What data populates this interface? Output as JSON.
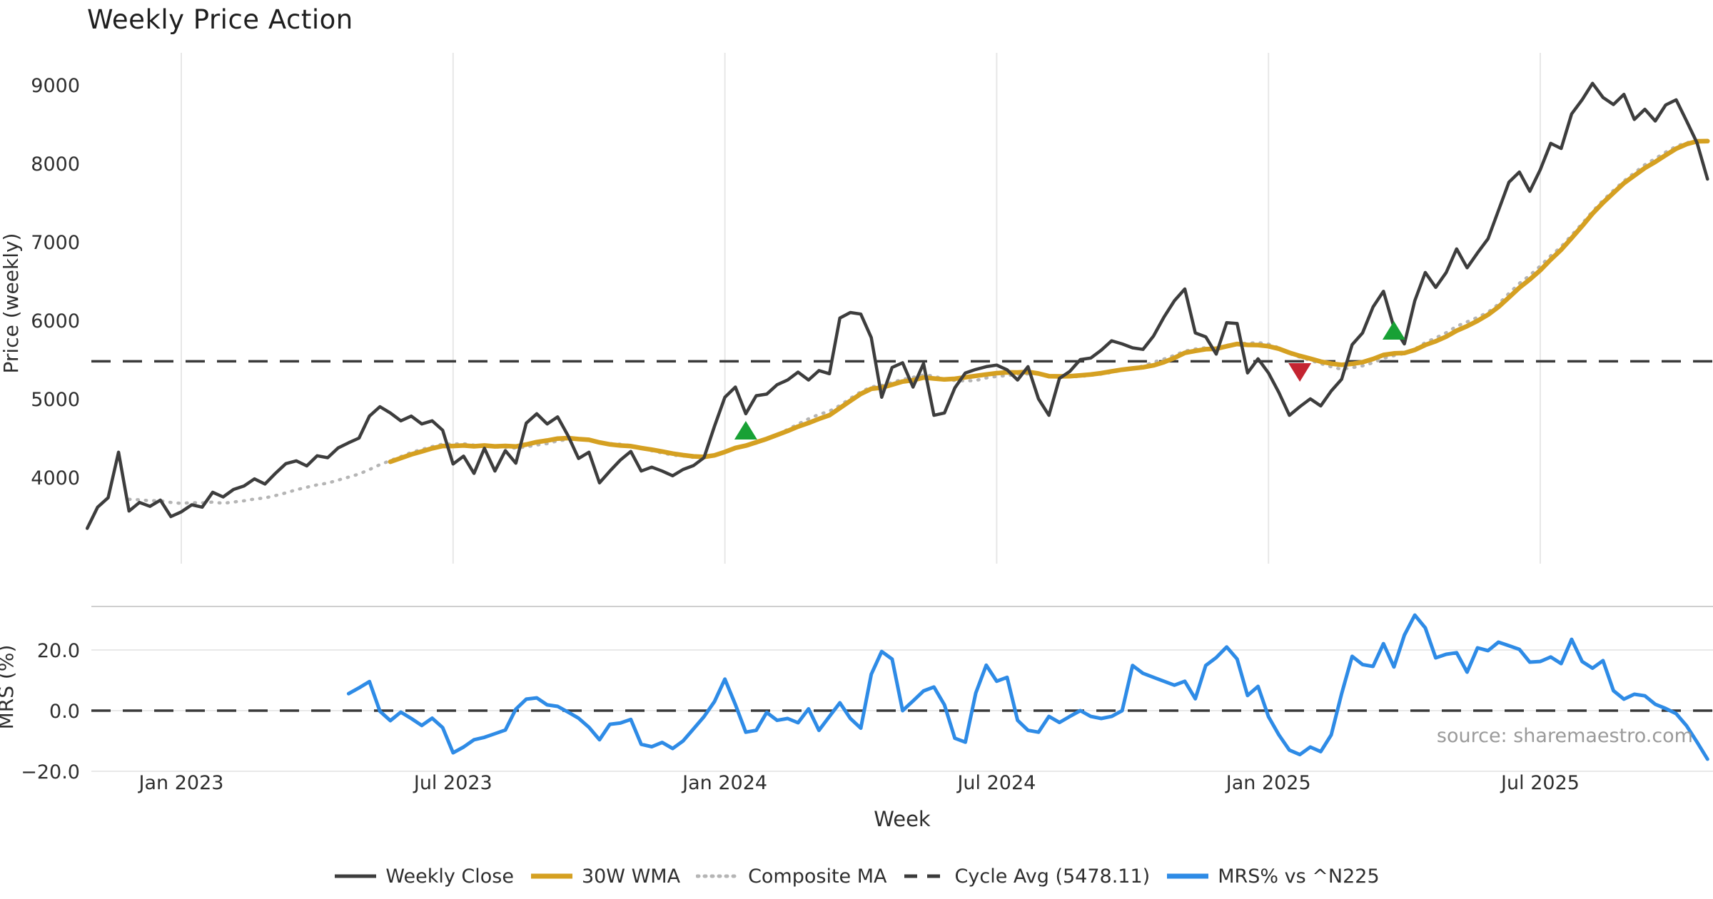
{
  "title": "Weekly Price Action",
  "source_credit": "source: sharemaestro.com",
  "colors": {
    "background": "#ffffff",
    "weekly_close": "#3d3d3d",
    "wma_30w": "#d5a021",
    "composite_ma": "#b5b5b5",
    "cycle_avg": "#3a3a3a",
    "mrs_line": "#2e8be6",
    "buy_marker": "#18a135",
    "sell_marker": "#c42431",
    "gridline_vertical": "#e7e7e7",
    "gridline_horizontal": "#e9e9e9",
    "panel_border": "#cfcfcf",
    "tick_text": "#2e2e2e",
    "title_text": "#1e1e1e",
    "source_text": "#9a9a9a"
  },
  "legend": [
    {
      "label": "Weekly Close",
      "color": "#3d3d3d",
      "style": "solid"
    },
    {
      "label": "30W WMA",
      "color": "#d5a021",
      "style": "solid-thick"
    },
    {
      "label": "Composite MA",
      "color": "#b5b5b5",
      "style": "dotted"
    },
    {
      "label": "Cycle Avg (5478.11)",
      "color": "#3a3a3a",
      "style": "dashed"
    },
    {
      "label": "MRS% vs ^N225",
      "color": "#2e8be6",
      "style": "solid-thick"
    }
  ],
  "chart_data": {
    "type": "line",
    "title": "Weekly Price Action",
    "xlabel": "Week",
    "weeks": 156,
    "x_ticks": [
      {
        "week": 9,
        "label": "Jan 2023"
      },
      {
        "week": 35,
        "label": "Jul 2023"
      },
      {
        "week": 61,
        "label": "Jan 2024"
      },
      {
        "week": 87,
        "label": "Jul 2024"
      },
      {
        "week": 113,
        "label": "Jan 2025"
      },
      {
        "week": 139,
        "label": "Jul 2025"
      }
    ],
    "panels": [
      {
        "ylabel": "Price (weekly)",
        "yticks": [
          {
            "label": "9000",
            "value": 9000
          },
          {
            "label": "8000",
            "value": 8000
          },
          {
            "label": "7000",
            "value": 7000
          },
          {
            "label": "6000",
            "value": 6000
          },
          {
            "label": "5000",
            "value": 5000
          },
          {
            "label": "4000",
            "value": 4000
          }
        ],
        "cycle_avg": 5478.11,
        "series": [
          {
            "name": "Weekly Close",
            "style": "solid",
            "values": [
              3350,
              3620,
              3740,
              4320,
              3570,
              3680,
              3630,
              3710,
              3500,
              3560,
              3650,
              3620,
              3810,
              3750,
              3845,
              3890,
              3980,
              3915,
              4050,
              4175,
              4210,
              4145,
              4275,
              4250,
              4375,
              4440,
              4500,
              4780,
              4900,
              4820,
              4720,
              4780,
              4680,
              4720,
              4600,
              4170,
              4270,
              4050,
              4370,
              4080,
              4340,
              4180,
              4690,
              4810,
              4680,
              4770,
              4530,
              4240,
              4320,
              3930,
              4080,
              4220,
              4330,
              4080,
              4130,
              4080,
              4020,
              4100,
              4150,
              4250,
              4650,
              5020,
              5150,
              4810,
              5040,
              5060,
              5180,
              5240,
              5340,
              5240,
              5360,
              5320,
              6030,
              6100,
              6080,
              5780,
              5020,
              5400,
              5460,
              5150,
              5450,
              4790,
              4820,
              5140,
              5330,
              5375,
              5410,
              5430,
              5370,
              5240,
              5410,
              5000,
              4790,
              5260,
              5350,
              5500,
              5520,
              5620,
              5740,
              5700,
              5650,
              5630,
              5800,
              6040,
              6250,
              6400,
              5840,
              5790,
              5570,
              5970,
              5960,
              5330,
              5510,
              5330,
              5080,
              4790,
              4900,
              5000,
              4910,
              5100,
              5250,
              5690,
              5840,
              6170,
              6370,
              5910,
              5700,
              6250,
              6610,
              6420,
              6610,
              6910,
              6670,
              6860,
              7040,
              7400,
              7760,
              7890,
              7645,
              7920,
              8255,
              8190,
              8630,
              8810,
              9020,
              8840,
              8750,
              8880,
              8560,
              8690,
              8540,
              8745,
              8810,
              8540,
              8260,
              7800
            ]
          },
          {
            "name": "30W WMA",
            "style": "solid-thick",
            "derived": "weighted_ma_30_of_weekly_close"
          },
          {
            "name": "Composite MA",
            "style": "dotted",
            "derived": "mean_of_sma10_sma20_sma30_of_weekly_close"
          },
          {
            "name": "Cycle Avg (5478.11)",
            "style": "dashed",
            "value": 5478.11
          }
        ],
        "markers": [
          {
            "week": 63,
            "price": 4600,
            "type": "buy",
            "shape": "triangle-up"
          },
          {
            "week": 116,
            "price": 5336,
            "type": "sell",
            "shape": "triangle-down"
          },
          {
            "week": 125,
            "price": 5873,
            "type": "buy",
            "shape": "triangle-up"
          }
        ]
      },
      {
        "ylabel": "MRS (%)",
        "yticks": [
          {
            "label": "20.0",
            "value": 20
          },
          {
            "label": "0.0",
            "value": 0
          },
          {
            "label": "−20.0",
            "value": -20
          }
        ],
        "zero_dashed_line": true,
        "series": [
          {
            "name": "MRS% vs ^N225",
            "style": "solid-thick",
            "values": [
              null,
              null,
              null,
              null,
              null,
              null,
              null,
              null,
              null,
              null,
              null,
              null,
              null,
              null,
              null,
              null,
              null,
              null,
              null,
              null,
              null,
              null,
              null,
              null,
              null,
              5.6,
              7.5,
              9.6,
              -0.2,
              -3.3,
              -0.5,
              -2.6,
              -4.9,
              -2.5,
              -5.6,
              -13.9,
              -12.0,
              -9.6,
              -8.8,
              -7.6,
              -6.4,
              0.5,
              3.8,
              4.2,
              1.9,
              1.4,
              -0.5,
              -2.5,
              -5.5,
              -9.6,
              -4.5,
              -4.1,
              -2.9,
              -11.1,
              -11.9,
              -10.5,
              -12.5,
              -10.0,
              -6.0,
              -2.0,
              3.0,
              10.4,
              2.0,
              -7.1,
              -6.5,
              -0.6,
              -3.2,
              -2.6,
              -4.0,
              0.6,
              -6.5,
              -1.9,
              2.6,
              -2.6,
              -5.8,
              12.0,
              19.5,
              17.0,
              0.0,
              3.2,
              6.5,
              7.8,
              1.9,
              -9.1,
              -10.4,
              5.8,
              15.0,
              9.7,
              11.0,
              -3.2,
              -6.5,
              -7.1,
              -1.9,
              -3.9,
              -1.9,
              0.0,
              -1.9,
              -2.6,
              -1.9,
              0.0,
              14.9,
              12.3,
              11.0,
              9.7,
              8.4,
              9.7,
              3.9,
              14.9,
              17.5,
              21.0,
              17.0,
              5.0,
              8.0,
              -2.0,
              -8.0,
              -13.0,
              -14.5,
              -12.0,
              -13.5,
              -8.0,
              5.6,
              17.9,
              15.2,
              14.6,
              22.1,
              14.4,
              24.9,
              31.5,
              27.3,
              17.4,
              18.6,
              19.1,
              12.7,
              20.7,
              19.8,
              22.6,
              21.4,
              20.2,
              16.0,
              16.2,
              17.7,
              15.5,
              23.5,
              16.2,
              14.0,
              16.5,
              6.6,
              3.8,
              5.4,
              4.9,
              2.1,
              0.7,
              -1.0,
              -5.0,
              -10.4,
              -16.0
            ]
          }
        ]
      }
    ]
  }
}
